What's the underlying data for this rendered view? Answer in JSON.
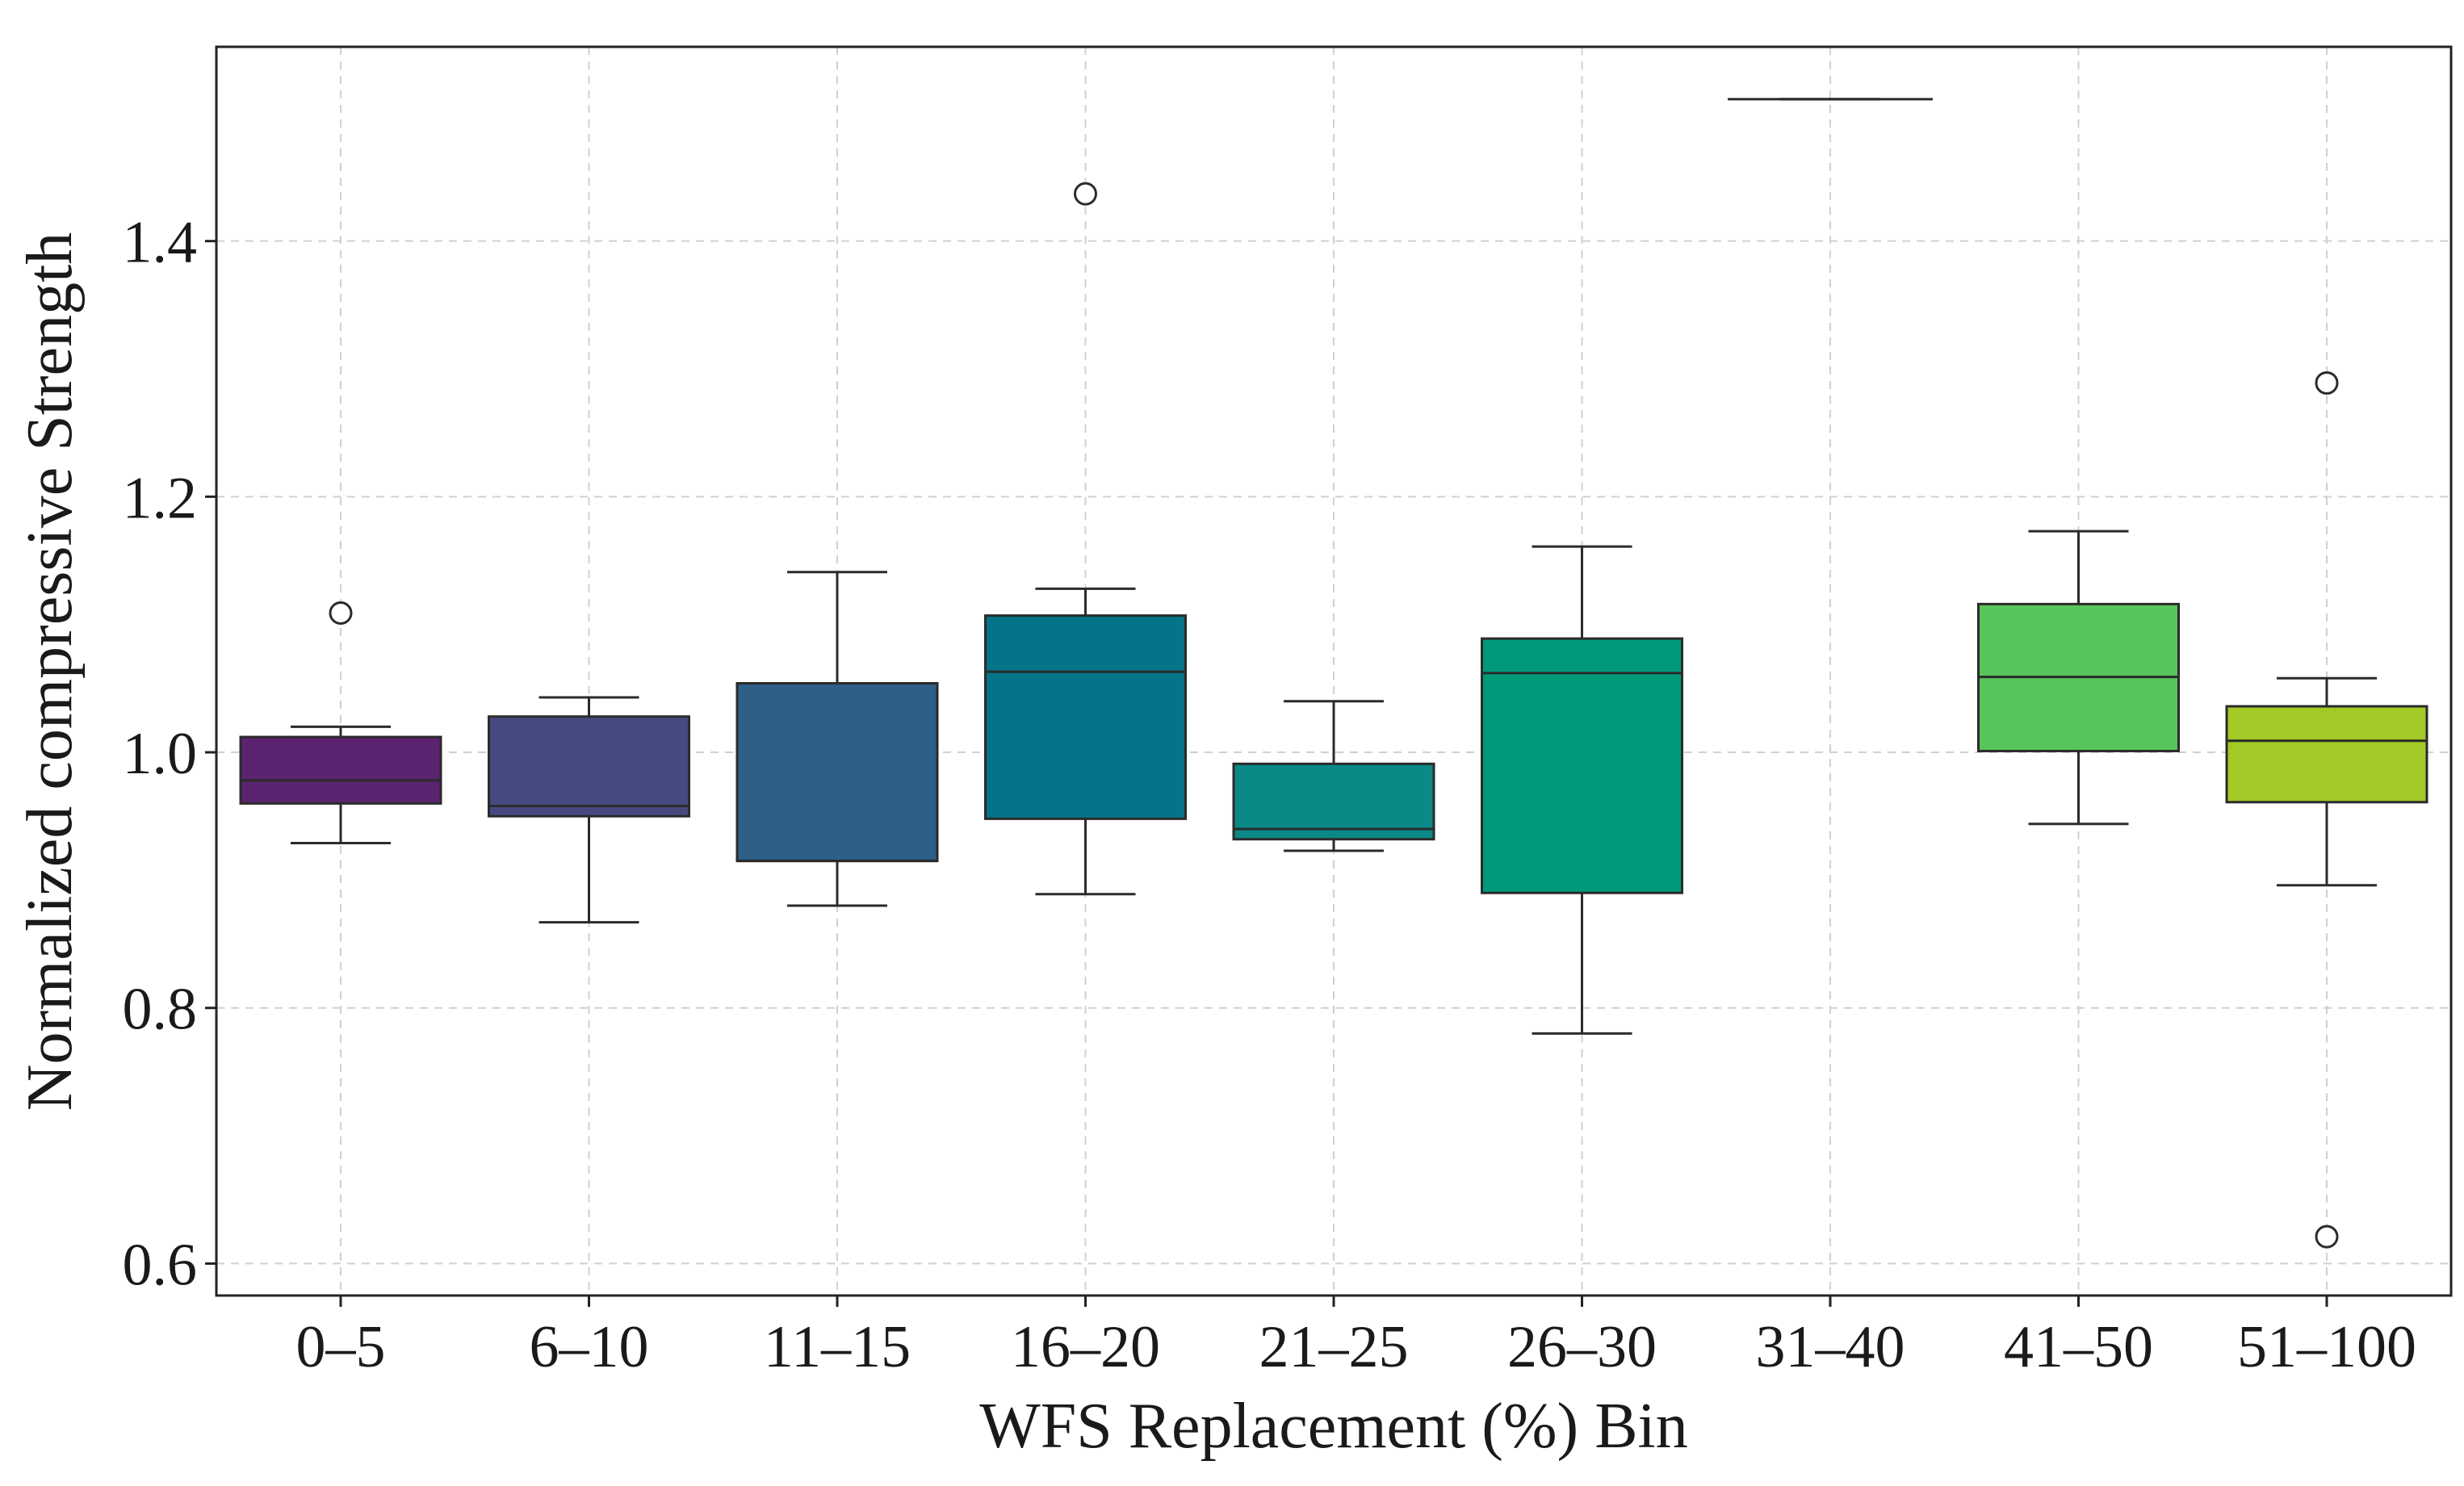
{
  "chart_data": {
    "type": "box",
    "title": "",
    "xlabel": "WFS Replacement (%) Bin",
    "ylabel": "Normalized compressive Strength",
    "ylim": [
      0.575,
      1.552
    ],
    "yticks": [
      0.6,
      0.8,
      1.0,
      1.2,
      1.4
    ],
    "ytick_labels": [
      "0.6",
      "0.8",
      "1.0",
      "1.2",
      "1.4"
    ],
    "grid": true,
    "categories": [
      "0–5",
      "6–10",
      "11–15",
      "16–20",
      "21–25",
      "26–30",
      "31–40",
      "41–50",
      "51–100"
    ],
    "boxes": [
      {
        "label": "0–5",
        "whisker_low": 0.929,
        "q1": 0.96,
        "median": 0.978,
        "q3": 1.012,
        "whisker_high": 1.02,
        "outliers": [
          1.109
        ],
        "color": "#5b2370"
      },
      {
        "label": "6–10",
        "whisker_low": 0.867,
        "q1": 0.95,
        "median": 0.958,
        "q3": 1.028,
        "whisker_high": 1.043,
        "outliers": [],
        "color": "#474a80"
      },
      {
        "label": "11–15",
        "whisker_low": 0.88,
        "q1": 0.915,
        "median": 0.915,
        "q3": 1.054,
        "whisker_high": 1.141,
        "outliers": [],
        "color": "#2e5f86"
      },
      {
        "label": "16–20",
        "whisker_low": 0.889,
        "q1": 0.948,
        "median": 1.063,
        "q3": 1.107,
        "whisker_high": 1.128,
        "outliers": [
          1.437
        ],
        "color": "#047488"
      },
      {
        "label": "21–25",
        "whisker_low": 0.923,
        "q1": 0.932,
        "median": 0.94,
        "q3": 0.991,
        "whisker_high": 1.04,
        "outliers": [],
        "color": "#0a8986"
      },
      {
        "label": "26–30",
        "whisker_low": 0.78,
        "q1": 0.89,
        "median": 1.062,
        "q3": 1.089,
        "whisker_high": 1.161,
        "outliers": [],
        "color": "#009a7a"
      },
      {
        "label": "31–40",
        "whisker_low": 1.511,
        "q1": 1.511,
        "median": 1.511,
        "q3": 1.511,
        "whisker_high": 1.511,
        "outliers": [],
        "color": "#2bb46a"
      },
      {
        "label": "41–50",
        "whisker_low": 0.944,
        "q1": 1.001,
        "median": 1.059,
        "q3": 1.116,
        "whisker_high": 1.173,
        "outliers": [],
        "color": "#56c55a"
      },
      {
        "label": "51–100",
        "whisker_low": 0.896,
        "q1": 0.961,
        "median": 1.009,
        "q3": 1.036,
        "whisker_high": 1.058,
        "outliers": [
          1.289,
          0.621
        ],
        "color": "#a2c926"
      }
    ]
  }
}
